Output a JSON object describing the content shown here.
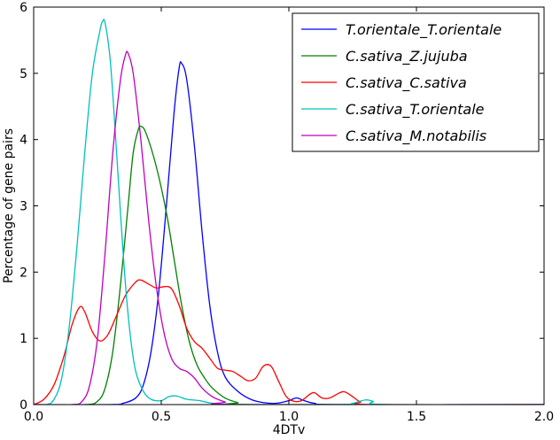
{
  "chart_data": {
    "type": "line",
    "xlabel": "4DTv",
    "ylabel": "Percentage of gene pairs",
    "xlim": [
      0.0,
      2.0
    ],
    "ylim": [
      0,
      6
    ],
    "x_ticks": [
      "0.0",
      "0.5",
      "1.0",
      "1.5",
      "2.0"
    ],
    "y_ticks": [
      "0",
      "1",
      "2",
      "3",
      "4",
      "5",
      "6"
    ],
    "grid": false,
    "legend_position": "top-right",
    "series": [
      {
        "name": "T.orientale_T.orientale",
        "color": "#0000ff",
        "points": [
          [
            0.0,
            0
          ],
          [
            0.3,
            0
          ],
          [
            0.35,
            0.02
          ],
          [
            0.4,
            0.1
          ],
          [
            0.43,
            0.3
          ],
          [
            0.46,
            0.8
          ],
          [
            0.49,
            1.7
          ],
          [
            0.52,
            3.0
          ],
          [
            0.55,
            4.4
          ],
          [
            0.57,
            5.08
          ],
          [
            0.58,
            5.15
          ],
          [
            0.6,
            4.9
          ],
          [
            0.63,
            3.9
          ],
          [
            0.66,
            2.6
          ],
          [
            0.69,
            1.5
          ],
          [
            0.72,
            0.8
          ],
          [
            0.75,
            0.42
          ],
          [
            0.8,
            0.2
          ],
          [
            0.85,
            0.08
          ],
          [
            0.9,
            0.03
          ],
          [
            0.95,
            0.02
          ],
          [
            1.0,
            0.06
          ],
          [
            1.03,
            0.1
          ],
          [
            1.06,
            0.06
          ],
          [
            1.1,
            0.02
          ],
          [
            1.2,
            0
          ],
          [
            2.0,
            0
          ]
        ]
      },
      {
        "name": "C.sativa_Z.jujuba",
        "color": "#008000",
        "points": [
          [
            0.0,
            0
          ],
          [
            0.2,
            0
          ],
          [
            0.25,
            0.05
          ],
          [
            0.28,
            0.25
          ],
          [
            0.31,
            0.8
          ],
          [
            0.34,
            1.8
          ],
          [
            0.37,
            3.0
          ],
          [
            0.39,
            3.8
          ],
          [
            0.41,
            4.15
          ],
          [
            0.42,
            4.2
          ],
          [
            0.44,
            4.1
          ],
          [
            0.48,
            3.6
          ],
          [
            0.52,
            2.9
          ],
          [
            0.55,
            2.2
          ],
          [
            0.58,
            1.5
          ],
          [
            0.61,
            0.95
          ],
          [
            0.64,
            0.6
          ],
          [
            0.67,
            0.4
          ],
          [
            0.7,
            0.25
          ],
          [
            0.75,
            0.1
          ],
          [
            0.8,
            0.03
          ],
          [
            0.85,
            0
          ],
          [
            2.0,
            0
          ]
        ]
      },
      {
        "name": "C.sativa_C.sativa",
        "color": "#ff0000",
        "points": [
          [
            0.0,
            0
          ],
          [
            0.04,
            0.08
          ],
          [
            0.08,
            0.3
          ],
          [
            0.12,
            0.75
          ],
          [
            0.15,
            1.2
          ],
          [
            0.18,
            1.47
          ],
          [
            0.2,
            1.4
          ],
          [
            0.23,
            1.1
          ],
          [
            0.26,
            0.96
          ],
          [
            0.29,
            1.05
          ],
          [
            0.32,
            1.3
          ],
          [
            0.36,
            1.65
          ],
          [
            0.4,
            1.85
          ],
          [
            0.42,
            1.88
          ],
          [
            0.45,
            1.82
          ],
          [
            0.48,
            1.76
          ],
          [
            0.51,
            1.78
          ],
          [
            0.54,
            1.75
          ],
          [
            0.57,
            1.5
          ],
          [
            0.6,
            1.15
          ],
          [
            0.63,
            0.95
          ],
          [
            0.66,
            0.85
          ],
          [
            0.69,
            0.7
          ],
          [
            0.72,
            0.55
          ],
          [
            0.75,
            0.52
          ],
          [
            0.78,
            0.5
          ],
          [
            0.81,
            0.43
          ],
          [
            0.84,
            0.36
          ],
          [
            0.87,
            0.4
          ],
          [
            0.9,
            0.58
          ],
          [
            0.93,
            0.58
          ],
          [
            0.96,
            0.35
          ],
          [
            0.99,
            0.12
          ],
          [
            1.02,
            0.05
          ],
          [
            1.05,
            0.06
          ],
          [
            1.08,
            0.15
          ],
          [
            1.1,
            0.18
          ],
          [
            1.13,
            0.1
          ],
          [
            1.16,
            0.1
          ],
          [
            1.2,
            0.18
          ],
          [
            1.22,
            0.19
          ],
          [
            1.25,
            0.12
          ],
          [
            1.28,
            0.04
          ],
          [
            1.32,
            0
          ],
          [
            2.0,
            0
          ]
        ]
      },
      {
        "name": "C.sativa_T.orientale",
        "color": "#00bfbf",
        "points": [
          [
            0.0,
            0
          ],
          [
            0.05,
            0
          ],
          [
            0.08,
            0.08
          ],
          [
            0.11,
            0.4
          ],
          [
            0.14,
            1.2
          ],
          [
            0.17,
            2.4
          ],
          [
            0.2,
            3.8
          ],
          [
            0.23,
            5.0
          ],
          [
            0.26,
            5.65
          ],
          [
            0.27,
            5.78
          ],
          [
            0.28,
            5.76
          ],
          [
            0.3,
            5.2
          ],
          [
            0.32,
            4.1
          ],
          [
            0.34,
            2.9
          ],
          [
            0.36,
            1.8
          ],
          [
            0.38,
            1.0
          ],
          [
            0.4,
            0.5
          ],
          [
            0.43,
            0.2
          ],
          [
            0.46,
            0.08
          ],
          [
            0.5,
            0.06
          ],
          [
            0.53,
            0.12
          ],
          [
            0.56,
            0.13
          ],
          [
            0.6,
            0.08
          ],
          [
            0.65,
            0.06
          ],
          [
            0.7,
            0.02
          ],
          [
            0.8,
            0
          ],
          [
            1.2,
            0
          ],
          [
            1.25,
            0.02
          ],
          [
            1.3,
            0.07
          ],
          [
            1.33,
            0.05
          ],
          [
            1.38,
            0
          ],
          [
            2.0,
            0
          ]
        ]
      },
      {
        "name": "C.sativa_M.notabilis",
        "color": "#bf00bf",
        "points": [
          [
            0.0,
            0
          ],
          [
            0.15,
            0
          ],
          [
            0.19,
            0.05
          ],
          [
            0.22,
            0.3
          ],
          [
            0.25,
            1.0
          ],
          [
            0.28,
            2.3
          ],
          [
            0.31,
            3.8
          ],
          [
            0.34,
            4.9
          ],
          [
            0.36,
            5.28
          ],
          [
            0.37,
            5.3
          ],
          [
            0.39,
            5.0
          ],
          [
            0.42,
            4.0
          ],
          [
            0.45,
            2.8
          ],
          [
            0.48,
            1.8
          ],
          [
            0.51,
            1.1
          ],
          [
            0.54,
            0.7
          ],
          [
            0.57,
            0.55
          ],
          [
            0.6,
            0.5
          ],
          [
            0.63,
            0.4
          ],
          [
            0.66,
            0.25
          ],
          [
            0.7,
            0.12
          ],
          [
            0.75,
            0.04
          ],
          [
            0.8,
            0
          ],
          [
            2.0,
            0
          ]
        ]
      }
    ]
  }
}
